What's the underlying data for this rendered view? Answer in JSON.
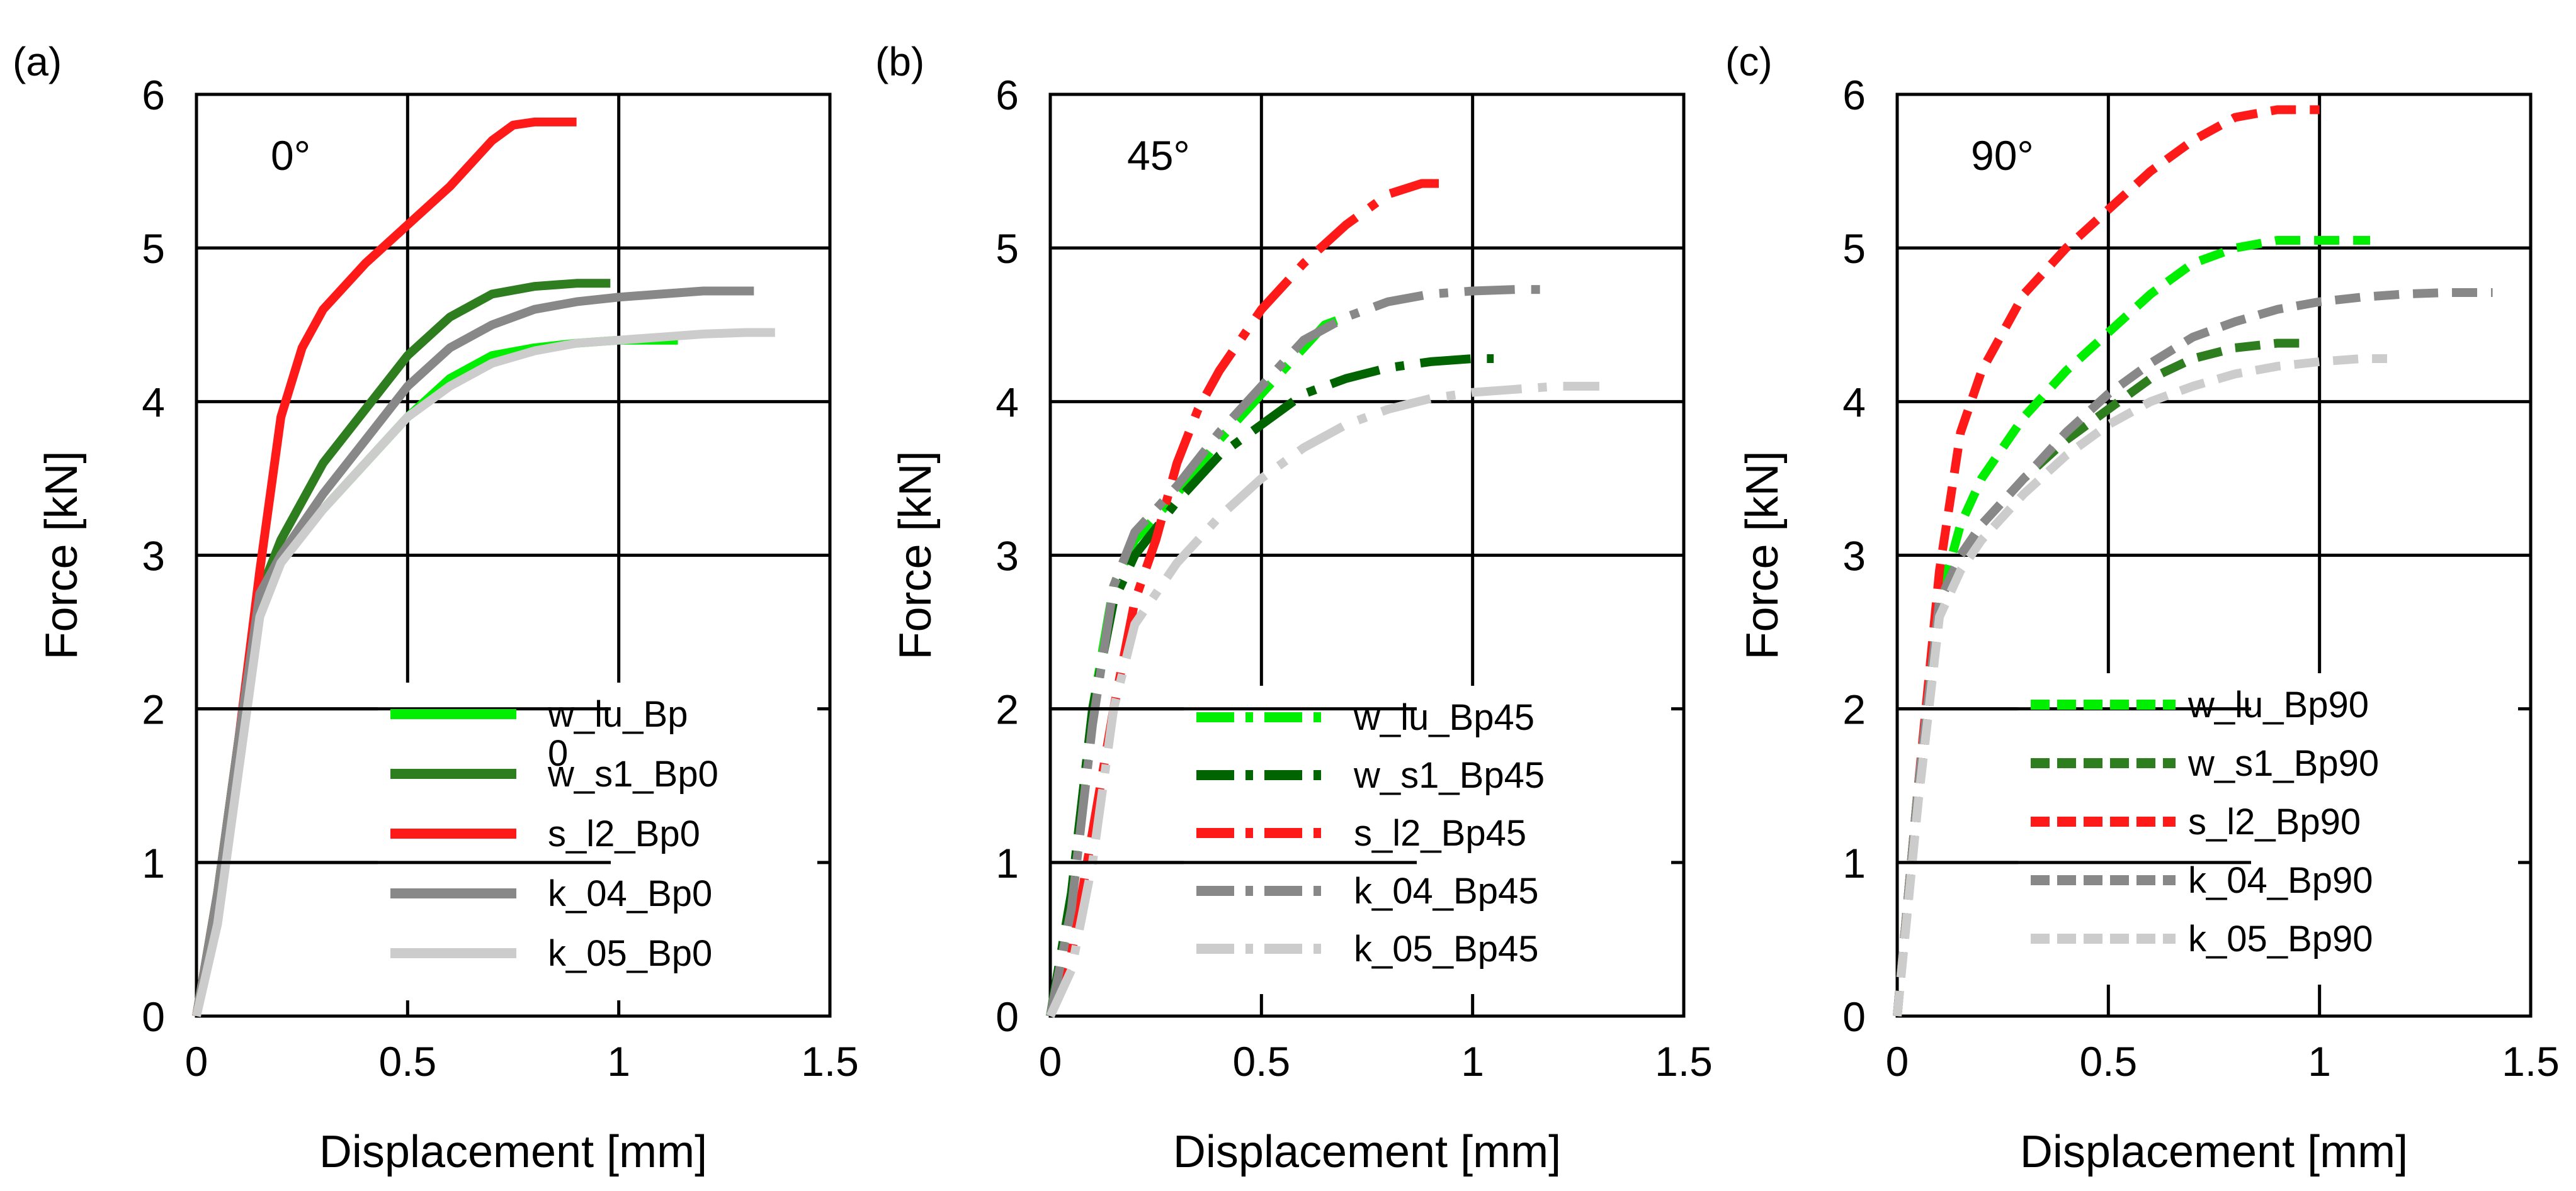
{
  "figure": {
    "panel_count": 3
  },
  "colors": {
    "w_lu": "#00ee00",
    "w_s1": "#2e7d1e",
    "w_s1_dark": "#006400",
    "s_l2": "#ff1a1a",
    "k_04": "#888888",
    "k_05": "#cccccc",
    "grid": "#000000"
  },
  "chart_data": [
    {
      "type": "line",
      "panel_label": "(a)",
      "angle_label": "0°",
      "line_style": "solid",
      "xlabel": "Displacement [mm]",
      "ylabel": "Force [kN]",
      "xlim": [
        0,
        1.5
      ],
      "ylim": [
        0,
        6
      ],
      "xticks": [
        "0",
        "0.5",
        "1",
        "1.5"
      ],
      "yticks": [
        "0",
        "1",
        "2",
        "3",
        "4",
        "5",
        "6"
      ],
      "gridlines_x": [
        0.5,
        1.0
      ],
      "gridlines_y": [
        1,
        2,
        3,
        4,
        5
      ],
      "series": [
        {
          "name": "w_lu_Bp0",
          "legend_label": "w_lu_Bp",
          "legend_label_wrap": "0",
          "color_key": "w_lu",
          "x": [
            0,
            0.05,
            0.1,
            0.15,
            0.2,
            0.3,
            0.4,
            0.5,
            0.6,
            0.7,
            0.8,
            0.9,
            1.0,
            1.1,
            1.14
          ],
          "y": [
            0,
            0.8,
            1.8,
            2.75,
            3.0,
            3.3,
            3.6,
            3.9,
            4.15,
            4.3,
            4.35,
            4.38,
            4.4,
            4.4,
            4.4
          ]
        },
        {
          "name": "w_s1_Bp0",
          "legend_label": "w_s1_Bp0",
          "color_key": "w_s1",
          "x": [
            0,
            0.05,
            0.1,
            0.15,
            0.2,
            0.3,
            0.4,
            0.5,
            0.6,
            0.7,
            0.8,
            0.9,
            0.98
          ],
          "y": [
            0,
            0.8,
            1.8,
            2.75,
            3.1,
            3.6,
            3.95,
            4.3,
            4.55,
            4.7,
            4.75,
            4.77,
            4.77
          ]
        },
        {
          "name": "s_l2_Bp0",
          "legend_label": "s_l2_Bp0",
          "color_key": "s_l2",
          "x": [
            0,
            0.05,
            0.1,
            0.15,
            0.2,
            0.25,
            0.3,
            0.4,
            0.5,
            0.6,
            0.7,
            0.75,
            0.8,
            0.9
          ],
          "y": [
            0,
            0.8,
            1.8,
            2.9,
            3.9,
            4.35,
            4.6,
            4.9,
            5.15,
            5.4,
            5.7,
            5.8,
            5.82,
            5.82
          ]
        },
        {
          "name": "k_04_Bp0",
          "legend_label": "k_04_Bp0",
          "color_key": "k_04",
          "x": [
            0,
            0.05,
            0.1,
            0.15,
            0.2,
            0.3,
            0.4,
            0.5,
            0.6,
            0.7,
            0.8,
            0.9,
            1.0,
            1.1,
            1.2,
            1.32
          ],
          "y": [
            0,
            0.8,
            1.8,
            2.75,
            3.0,
            3.4,
            3.75,
            4.1,
            4.35,
            4.5,
            4.6,
            4.65,
            4.68,
            4.7,
            4.72,
            4.72
          ]
        },
        {
          "name": "k_05_Bp0",
          "legend_label": "k_05_Bp0",
          "color_key": "k_05",
          "x": [
            0,
            0.05,
            0.1,
            0.15,
            0.2,
            0.3,
            0.4,
            0.5,
            0.6,
            0.7,
            0.8,
            0.9,
            1.0,
            1.1,
            1.2,
            1.3,
            1.37
          ],
          "y": [
            0,
            0.6,
            1.6,
            2.6,
            2.95,
            3.3,
            3.6,
            3.9,
            4.1,
            4.25,
            4.33,
            4.38,
            4.4,
            4.42,
            4.44,
            4.45,
            4.45
          ]
        }
      ]
    },
    {
      "type": "line",
      "panel_label": "(b)",
      "angle_label": "45°",
      "line_style": "dashdot",
      "xlabel": "Displacement [mm]",
      "ylabel": "Force [kN]",
      "xlim": [
        0,
        1.5
      ],
      "ylim": [
        0,
        6
      ],
      "xticks": [
        "0",
        "0.5",
        "1",
        "1.5"
      ],
      "yticks": [
        "0",
        "1",
        "2",
        "3",
        "4",
        "5",
        "6"
      ],
      "gridlines_x": [
        0.5,
        1.0
      ],
      "gridlines_y": [
        1,
        2,
        3,
        4,
        5
      ],
      "series": [
        {
          "name": "w_lu_Bp45",
          "legend_label": "w_lu_Bp45",
          "color_key": "w_lu",
          "x": [
            0,
            0.05,
            0.1,
            0.15,
            0.2,
            0.3,
            0.4,
            0.5,
            0.6,
            0.65,
            0.7
          ],
          "y": [
            0,
            0.8,
            2.0,
            2.8,
            3.1,
            3.4,
            3.75,
            4.05,
            4.35,
            4.5,
            4.55
          ]
        },
        {
          "name": "w_s1_Bp45",
          "legend_label": "w_s1_Bp45",
          "color_key": "w_s1_dark",
          "x": [
            0,
            0.05,
            0.1,
            0.15,
            0.2,
            0.3,
            0.4,
            0.5,
            0.6,
            0.7,
            0.8,
            0.9,
            1.0,
            1.05
          ],
          "y": [
            0,
            0.8,
            2.0,
            2.7,
            3.0,
            3.35,
            3.65,
            3.85,
            4.05,
            4.15,
            4.22,
            4.26,
            4.28,
            4.28
          ]
        },
        {
          "name": "s_l2_Bp45",
          "legend_label": "s_l2_Bp45",
          "color_key": "s_l2",
          "x": [
            0,
            0.05,
            0.1,
            0.15,
            0.2,
            0.25,
            0.3,
            0.35,
            0.4,
            0.5,
            0.6,
            0.7,
            0.8,
            0.88,
            0.92
          ],
          "y": [
            0,
            0.4,
            1.2,
            2.0,
            2.7,
            3.1,
            3.6,
            3.95,
            4.2,
            4.6,
            4.9,
            5.15,
            5.35,
            5.42,
            5.42
          ]
        },
        {
          "name": "k_04_Bp45",
          "legend_label": "k_04_Bp45",
          "color_key": "k_04",
          "x": [
            0,
            0.05,
            0.1,
            0.15,
            0.2,
            0.3,
            0.4,
            0.5,
            0.6,
            0.7,
            0.8,
            0.9,
            1.0,
            1.1,
            1.16
          ],
          "y": [
            0,
            0.7,
            1.9,
            2.8,
            3.15,
            3.45,
            3.8,
            4.1,
            4.4,
            4.55,
            4.65,
            4.7,
            4.72,
            4.73,
            4.73
          ]
        },
        {
          "name": "k_05_Bp45",
          "legend_label": "k_05_Bp45",
          "color_key": "k_05",
          "x": [
            0,
            0.05,
            0.1,
            0.15,
            0.2,
            0.3,
            0.4,
            0.5,
            0.6,
            0.7,
            0.8,
            0.9,
            1.0,
            1.1,
            1.2,
            1.3
          ],
          "y": [
            0,
            0.3,
            1.0,
            2.0,
            2.55,
            2.95,
            3.25,
            3.5,
            3.7,
            3.85,
            3.95,
            4.02,
            4.06,
            4.08,
            4.1,
            4.1
          ]
        }
      ]
    },
    {
      "type": "line",
      "panel_label": "(c)",
      "angle_label": "90°",
      "line_style": "dashed",
      "xlabel": "Displacement [mm]",
      "ylabel": "Force [kN]",
      "xlim": [
        0,
        1.5
      ],
      "ylim": [
        0,
        6
      ],
      "xticks": [
        "0",
        "0.5",
        "1",
        "1.5"
      ],
      "yticks": [
        "0",
        "1",
        "2",
        "3",
        "4",
        "5",
        "6"
      ],
      "gridlines_x": [
        0.5,
        1.0
      ],
      "gridlines_y": [
        1,
        2,
        3,
        4,
        5
      ],
      "series": [
        {
          "name": "w_lu_Bp90",
          "legend_label": "w_lu_Bp90",
          "color_key": "w_lu",
          "x": [
            0,
            0.05,
            0.1,
            0.15,
            0.2,
            0.3,
            0.4,
            0.5,
            0.6,
            0.7,
            0.8,
            0.9,
            1.0,
            1.12
          ],
          "y": [
            0,
            1.5,
            2.7,
            3.2,
            3.5,
            3.9,
            4.2,
            4.45,
            4.7,
            4.9,
            5.0,
            5.05,
            5.05,
            5.05
          ]
        },
        {
          "name": "w_s1_Bp90",
          "legend_label": "w_s1_Bp90",
          "color_key": "w_s1",
          "x": [
            0,
            0.05,
            0.1,
            0.15,
            0.2,
            0.3,
            0.4,
            0.5,
            0.6,
            0.7,
            0.8,
            0.9,
            0.97
          ],
          "y": [
            0,
            1.5,
            2.7,
            3.0,
            3.2,
            3.5,
            3.75,
            3.95,
            4.15,
            4.28,
            4.35,
            4.38,
            4.38
          ]
        },
        {
          "name": "s_l2_Bp90",
          "legend_label": "s_l2_Bp90",
          "color_key": "s_l2",
          "x": [
            0,
            0.05,
            0.1,
            0.15,
            0.2,
            0.3,
            0.4,
            0.5,
            0.6,
            0.7,
            0.8,
            0.9,
            1.0
          ],
          "y": [
            0,
            1.5,
            2.9,
            3.8,
            4.2,
            4.7,
            5.0,
            5.25,
            5.5,
            5.7,
            5.85,
            5.9,
            5.9
          ]
        },
        {
          "name": "k_04_Bp90",
          "legend_label": "k_04_Bp90",
          "color_key": "k_04",
          "x": [
            0,
            0.05,
            0.1,
            0.15,
            0.2,
            0.3,
            0.4,
            0.5,
            0.6,
            0.7,
            0.8,
            0.9,
            1.0,
            1.1,
            1.2,
            1.3,
            1.41
          ],
          "y": [
            0,
            1.5,
            2.7,
            3.0,
            3.2,
            3.5,
            3.8,
            4.05,
            4.25,
            4.42,
            4.52,
            4.6,
            4.65,
            4.68,
            4.7,
            4.71,
            4.71
          ]
        },
        {
          "name": "k_05_Bp90",
          "legend_label": "k_05_Bp90",
          "color_key": "k_05",
          "x": [
            0,
            0.05,
            0.1,
            0.15,
            0.2,
            0.3,
            0.4,
            0.5,
            0.6,
            0.7,
            0.8,
            0.9,
            1.0,
            1.1,
            1.16
          ],
          "y": [
            0,
            1.4,
            2.6,
            2.9,
            3.1,
            3.4,
            3.65,
            3.85,
            4.0,
            4.1,
            4.18,
            4.23,
            4.26,
            4.28,
            4.28
          ]
        }
      ]
    }
  ]
}
